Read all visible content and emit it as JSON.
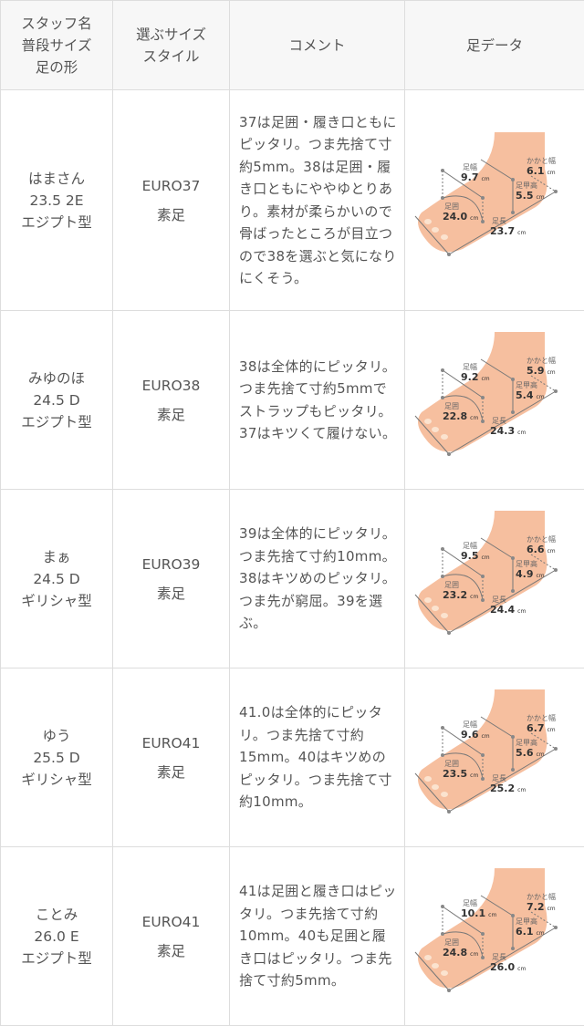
{
  "headers": [
    [
      "スタッフ名",
      "普段サイズ",
      "足の形"
    ],
    [
      "選ぶサイズ",
      "スタイル"
    ],
    [
      "コメント"
    ],
    [
      "足データ"
    ]
  ],
  "foot_labels": {
    "width": "足幅",
    "heel": "かかと幅",
    "instep": "足甲高",
    "girth": "足囲",
    "length": "足長",
    "unit": "cm"
  },
  "rows": [
    {
      "name": "はまさん",
      "size": "23.5 2E",
      "shape": "エジプト型",
      "choice": "EURO37",
      "style": "素足",
      "comment": "37は足囲・履き口ともにピッタリ。つま先捨て寸約5mm。38は足囲・履き口ともにややゆとりあり。素材が柔らかいので骨ばったところが目立つので38を選ぶと気になりにくそう。",
      "foot": {
        "width": "9.7",
        "heel": "6.1",
        "instep": "5.5",
        "girth": "24.0",
        "length": "23.7"
      }
    },
    {
      "name": "みゆのほ",
      "size": "24.5 D",
      "shape": "エジプト型",
      "choice": "EURO38",
      "style": "素足",
      "comment": "38は全体的にピッタリ。つま先捨て寸約5mmでストラップもピッタリ。37はキツくて履けない。",
      "foot": {
        "width": "9.2",
        "heel": "5.9",
        "instep": "5.4",
        "girth": "22.8",
        "length": "24.3"
      }
    },
    {
      "name": "まぁ",
      "size": "24.5 D",
      "shape": "ギリシャ型",
      "choice": "EURO39",
      "style": "素足",
      "comment": "39は全体的にピッタリ。つま先捨て寸約10mm。38はキツめのピッタリ。つま先が窮屈。39を選ぶ。",
      "foot": {
        "width": "9.5",
        "heel": "6.6",
        "instep": "4.9",
        "girth": "23.2",
        "length": "24.4"
      }
    },
    {
      "name": "ゆう",
      "size": "25.5 D",
      "shape": "ギリシャ型",
      "choice": "EURO41",
      "style": "素足",
      "comment": "41.0は全体的にピッタリ。つま先捨て寸約15mm。40はキツめのピッタリ。つま先捨て寸約10mm。",
      "foot": {
        "width": "9.6",
        "heel": "6.7",
        "instep": "5.6",
        "girth": "23.5",
        "length": "25.2"
      }
    },
    {
      "name": "ことみ",
      "size": "26.0 E",
      "shape": "エジプト型",
      "choice": "EURO41",
      "style": "素足",
      "comment": "41は足囲と履き口はピッタリ。つま先捨て寸約10mm。40も足囲と履き口はピッタリ。つま先捨て寸約5mm。",
      "foot": {
        "width": "10.1",
        "heel": "7.2",
        "instep": "6.1",
        "girth": "24.8",
        "length": "26.0"
      }
    }
  ]
}
